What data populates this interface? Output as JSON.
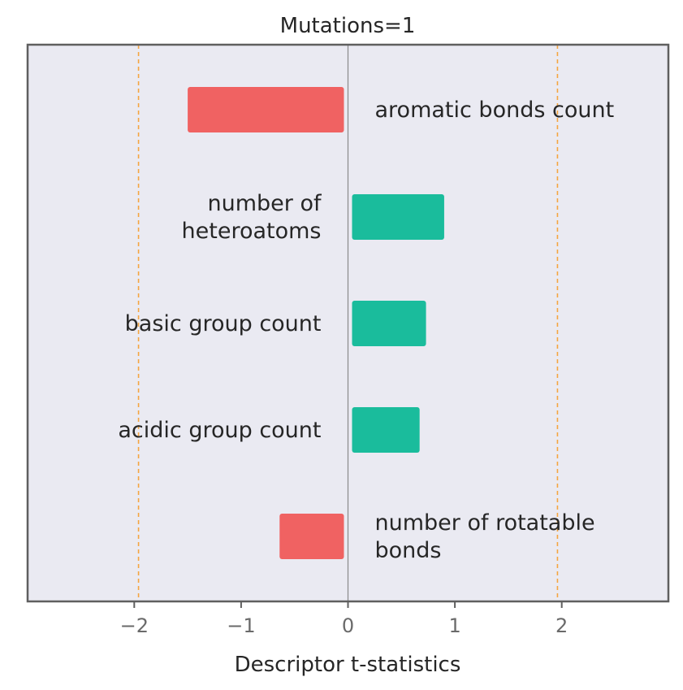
{
  "chart_data": {
    "type": "bar",
    "orientation": "horizontal",
    "title": "Mutations=1",
    "xlabel": "Descriptor t-statistics",
    "ylabel": "",
    "xlim": [
      -3,
      3
    ],
    "xticks": [
      -2,
      -1,
      0,
      1,
      2
    ],
    "xtick_labels": [
      "−2",
      "−1",
      "0",
      "1",
      "2"
    ],
    "threshold_lines": [
      -1.96,
      1.96
    ],
    "grid": false,
    "categories": [
      "aromatic bonds count",
      "number of heteroatoms",
      "basic group count",
      "acidic group count",
      "number of rotatable bonds"
    ],
    "label_lines": [
      [
        "aromatic bonds count"
      ],
      [
        "number of",
        "heteroatoms"
      ],
      [
        "basic group count"
      ],
      [
        "acidic group count"
      ],
      [
        "number of rotatable",
        "bonds"
      ]
    ],
    "values": [
      -1.5,
      0.9,
      0.73,
      0.67,
      -0.64
    ],
    "colors": {
      "positive": "#1abc9c",
      "negative": "#f06262",
      "threshold": "#f5a540",
      "zero_line": "#8a8a8a",
      "plot_bg": "#eaeaf2",
      "frame": "#5f5f5f"
    }
  }
}
